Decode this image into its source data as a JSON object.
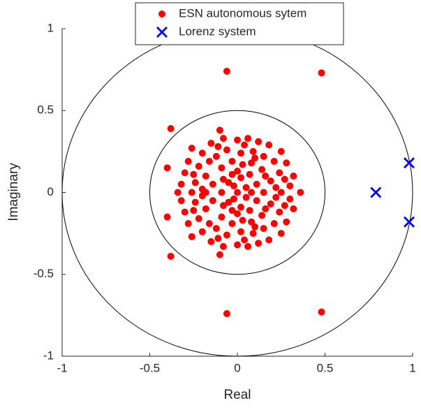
{
  "chart_data": {
    "type": "scatter",
    "xlabel": "Real",
    "ylabel": "Imaginary",
    "xlim": [
      -1,
      1
    ],
    "ylim": [
      -1,
      1
    ],
    "xticks": [
      -1,
      -0.5,
      0,
      0.5,
      1
    ],
    "yticks": [
      -1,
      -0.5,
      0,
      0.5,
      1
    ],
    "circles": [
      1,
      0.5
    ],
    "legend": "north",
    "series": [
      {
        "name": "ESN autonomous sytem",
        "color": "#ff0000",
        "marker": "dot",
        "x": [
          -0.26,
          -0.2,
          -0.15,
          -0.08,
          0.0,
          0.06,
          0.12,
          0.18,
          0.25,
          0.28,
          0.32,
          0.3,
          -0.3,
          -0.32,
          -0.28,
          -0.22,
          -0.18,
          -0.24,
          -0.12,
          -0.06,
          0.02,
          0.09,
          0.15,
          0.21,
          0.24,
          0.19,
          0.14,
          0.08,
          0.03,
          -0.03,
          -0.09,
          -0.14,
          -0.08,
          -0.03,
          0.02,
          0.07,
          0.11,
          0.05,
          -0.02,
          0.0,
          -0.16,
          0.22,
          0.27,
          -0.2,
          0.1,
          -0.11,
          0.04,
          -0.05,
          0.16,
          -0.25,
          -0.06,
          0.48,
          -0.38,
          -0.4,
          -0.1,
          -0.26,
          -0.2,
          -0.15,
          -0.08,
          0.0,
          0.06,
          0.12,
          0.18,
          0.25,
          0.28,
          0.32,
          0.3,
          -0.3,
          -0.32,
          -0.28,
          -0.22,
          -0.18,
          -0.24,
          -0.12,
          -0.06,
          0.02,
          0.09,
          0.15,
          0.21,
          0.24,
          0.19,
          0.14,
          0.08,
          0.03,
          -0.03,
          -0.09,
          -0.14,
          -0.08,
          -0.03,
          0.02,
          0.07,
          0.11,
          0.05,
          -0.02,
          0.0,
          -0.16,
          0.22,
          0.27,
          -0.2,
          0.1,
          -0.11,
          0.04,
          -0.05,
          0.16,
          -0.25,
          -0.06,
          0.48,
          -0.38,
          -0.4,
          -0.1,
          -0.34,
          -0.26,
          -0.18,
          -0.09,
          0.0,
          0.08,
          0.15,
          0.25,
          0.36
        ],
        "values": [
          0.27,
          0.24,
          0.3,
          0.33,
          0.32,
          0.33,
          0.31,
          0.29,
          0.25,
          0.18,
          0.1,
          0.04,
          0.12,
          0.05,
          0.19,
          0.16,
          0.1,
          0.06,
          0.22,
          0.26,
          0.24,
          0.25,
          0.22,
          0.19,
          0.12,
          0.07,
          0.14,
          0.18,
          0.17,
          0.19,
          0.15,
          0.05,
          0.08,
          0.11,
          0.09,
          0.11,
          0.05,
          0.03,
          0.04,
          0.13,
          0.19,
          0.03,
          0.08,
          0.02,
          0.21,
          0.28,
          0.29,
          0.06,
          0.1,
          0.11,
          0.74,
          0.73,
          0.39,
          0.15,
          0.38,
          -0.27,
          -0.24,
          -0.3,
          -0.33,
          -0.32,
          -0.33,
          -0.31,
          -0.29,
          -0.25,
          -0.18,
          -0.1,
          -0.04,
          -0.12,
          -0.05,
          -0.19,
          -0.16,
          -0.1,
          -0.06,
          -0.22,
          -0.26,
          -0.24,
          -0.25,
          -0.22,
          -0.19,
          -0.12,
          -0.07,
          -0.14,
          -0.18,
          -0.17,
          -0.19,
          -0.15,
          -0.05,
          -0.08,
          -0.11,
          -0.09,
          -0.11,
          -0.05,
          -0.03,
          -0.04,
          -0.13,
          -0.19,
          -0.03,
          -0.08,
          -0.02,
          -0.21,
          -0.28,
          -0.29,
          -0.06,
          -0.1,
          -0.11,
          -0.74,
          -0.73,
          -0.39,
          -0.15,
          -0.38,
          0,
          0,
          0,
          0,
          0,
          0,
          0,
          0,
          0
        ]
      },
      {
        "name": "Lorenz system",
        "color": "#0000ff",
        "marker": "x",
        "x": [
          0.79,
          0.98,
          0.98
        ],
        "values": [
          0.0,
          0.18,
          -0.18
        ]
      }
    ]
  }
}
